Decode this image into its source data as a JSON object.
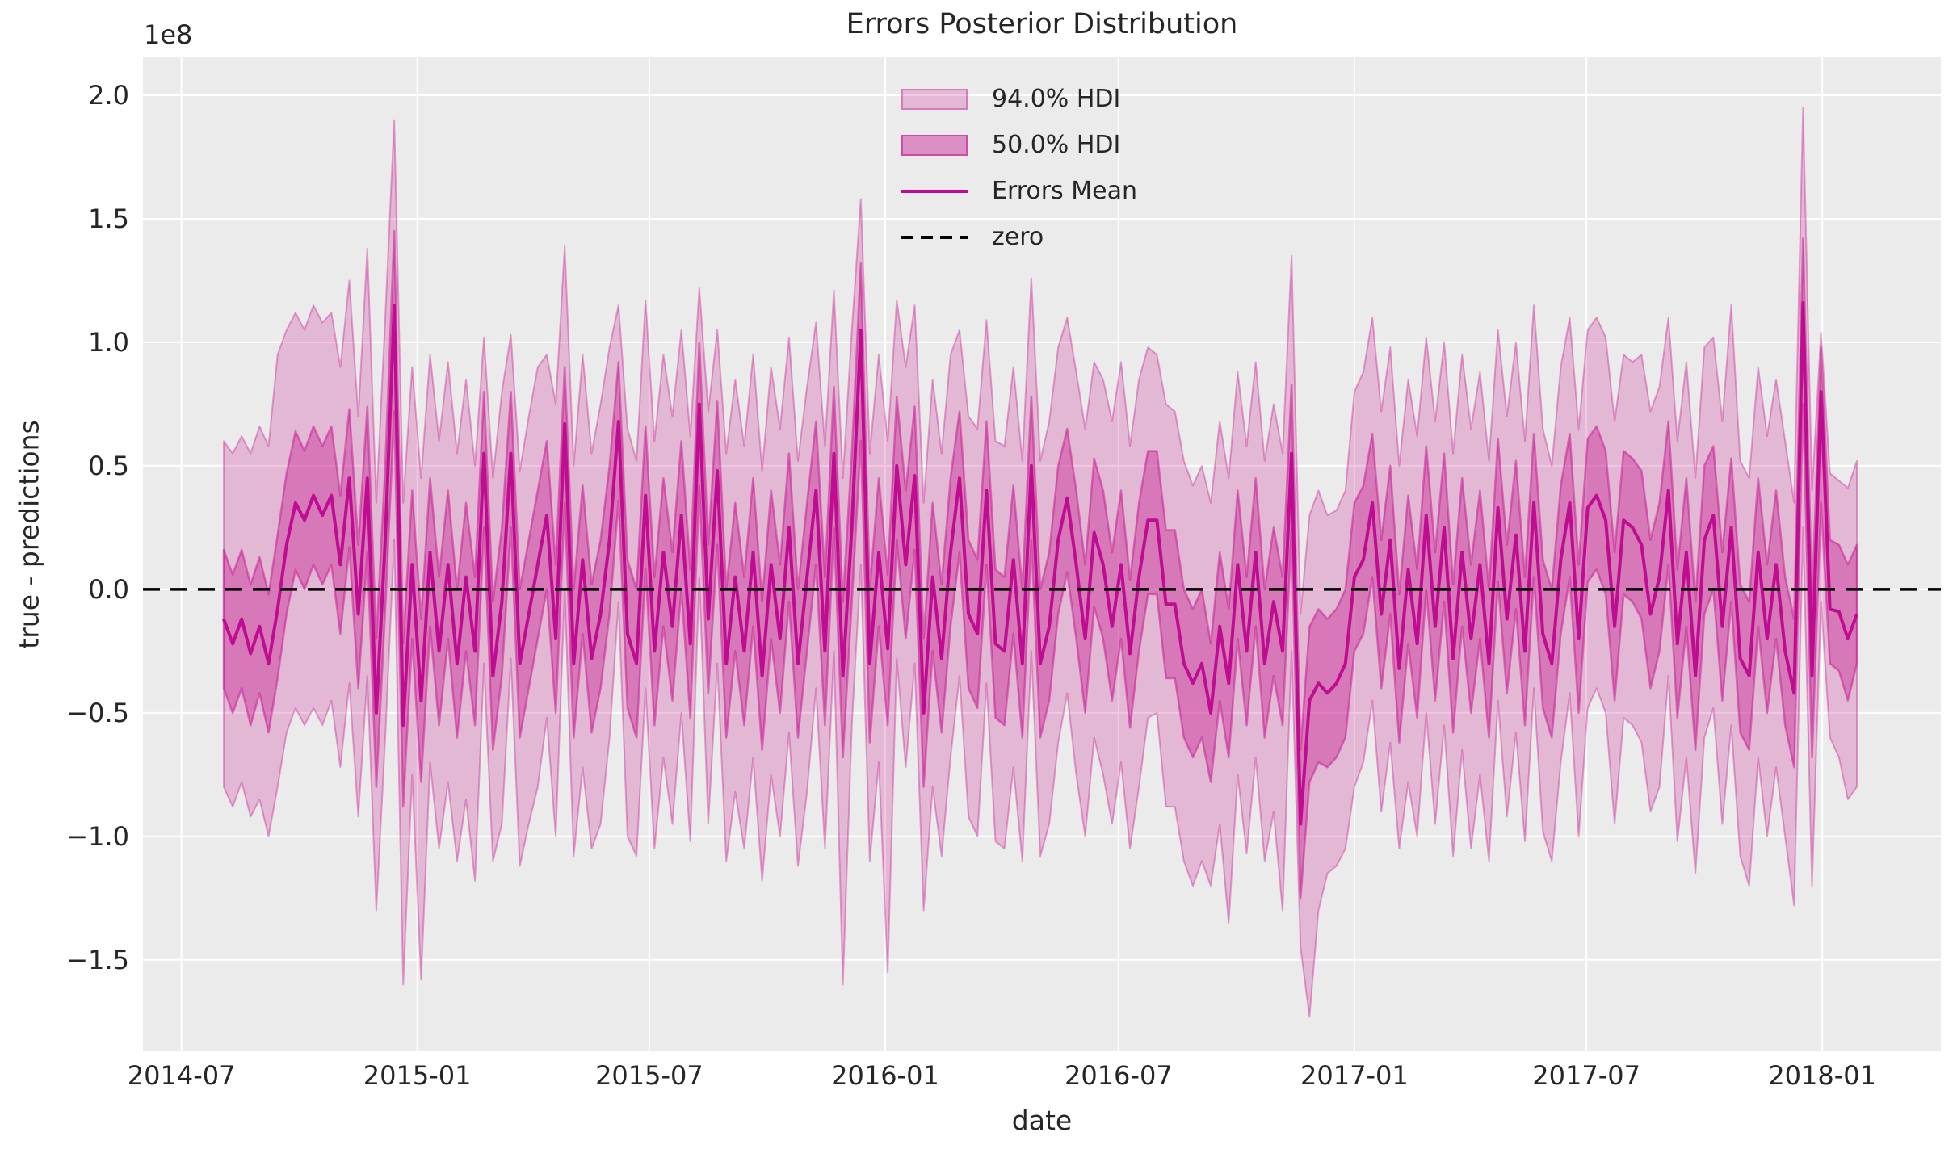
{
  "figure": {
    "title": "Errors Posterior Distribution",
    "xlabel": "date",
    "ylabel": "true - predictions",
    "offset_label": "1e8",
    "background": "#ffffff",
    "axes_background": "#ebebeb",
    "grid_color": "#ffffff",
    "text_color": "#262626"
  },
  "legend": {
    "items": [
      {
        "label": "94.0% HDI",
        "type": "patch",
        "fill": "rgba(199,32,148,0.25)",
        "border": "rgba(199,32,148,0.4)"
      },
      {
        "label": "50.0% HDI",
        "type": "patch",
        "fill": "rgba(199,32,148,0.45)",
        "border": "rgba(199,32,148,0.6)"
      },
      {
        "label": "Errors Mean",
        "type": "line",
        "color": "#be0d90"
      },
      {
        "label": "zero",
        "type": "dashed-line",
        "color": "#000000"
      }
    ]
  },
  "chart_data": {
    "type": "line",
    "title": "Errors Posterior Distribution",
    "xlabel": "date",
    "ylabel": "true - predictions",
    "value_units": "1e8",
    "grid": true,
    "legend_position": "upper center",
    "x_start_date": "2014-08-03",
    "x_step_days": 7,
    "n_points": 183,
    "x_data_start_day": 33,
    "xlim_days": [
      -30,
      1372.5
    ],
    "x_tick_days": [
      0,
      184,
      365,
      549,
      731,
      915,
      1096,
      1280
    ],
    "x_tick_labels": [
      "2014-07",
      "2015-01",
      "2015-07",
      "2016-01",
      "2016-07",
      "2017-01",
      "2017-07",
      "2018-01"
    ],
    "ylim": [
      -1.87,
      2.157
    ],
    "y_ticks": [
      2.0,
      1.5,
      1.0,
      0.5,
      0.0,
      -0.5,
      -1.0,
      -1.5
    ],
    "y_tick_labels": [
      "2.0",
      "1.5",
      "1.0",
      "0.5",
      "0.0",
      "−0.5",
      "−1.0",
      "−1.5"
    ],
    "zero_line": 0,
    "colors": {
      "band94_fill": "rgba(199,32,148,0.25)",
      "band94_edge": "rgba(199,32,148,0.4)",
      "band50_fill": "rgba(199,32,148,0.42)",
      "band50_edge": "rgba(199,32,148,0.55)",
      "mean_line": "#be0d90",
      "zero_line": "#000000"
    },
    "series": [
      {
        "name": "Errors Mean",
        "values": [
          -0.12,
          -0.22,
          -0.12,
          -0.26,
          -0.15,
          -0.3,
          -0.08,
          0.18,
          0.35,
          0.28,
          0.38,
          0.3,
          0.38,
          0.1,
          0.45,
          -0.1,
          0.45,
          -0.5,
          0.2,
          1.15,
          -0.55,
          0.1,
          -0.45,
          0.15,
          -0.25,
          0.1,
          -0.3,
          0.05,
          -0.25,
          0.55,
          -0.35,
          -0.05,
          0.55,
          -0.3,
          -0.1,
          0.1,
          0.3,
          -0.2,
          0.67,
          -0.3,
          0.12,
          -0.28,
          -0.1,
          0.2,
          0.68,
          -0.18,
          -0.3,
          0.38,
          -0.25,
          0.15,
          -0.15,
          0.3,
          -0.22,
          0.75,
          -0.12,
          0.48,
          -0.3,
          0.05,
          -0.25,
          0.15,
          -0.35,
          0.1,
          -0.2,
          0.25,
          -0.3,
          0.05,
          0.4,
          -0.25,
          0.55,
          -0.35,
          0.25,
          1.05,
          -0.3,
          0.15,
          -0.24,
          0.5,
          0.1,
          0.46,
          -0.5,
          0.05,
          -0.28,
          0.15,
          0.45,
          -0.1,
          -0.18,
          0.4,
          -0.22,
          -0.25,
          0.12,
          -0.3,
          0.5,
          -0.3,
          -0.15,
          0.2,
          0.37,
          0.1,
          -0.2,
          0.23,
          0.1,
          -0.15,
          0.1,
          -0.26,
          0.05,
          0.28,
          0.28,
          -0.06,
          -0.06,
          -0.3,
          -0.38,
          -0.3,
          -0.5,
          -0.15,
          -0.38,
          0.1,
          -0.25,
          0.15,
          -0.3,
          -0.05,
          -0.25,
          0.55,
          -0.95,
          -0.45,
          -0.38,
          -0.42,
          -0.38,
          -0.3,
          0.05,
          0.12,
          0.35,
          -0.1,
          0.2,
          -0.32,
          0.08,
          -0.22,
          0.3,
          -0.15,
          0.25,
          -0.28,
          0.15,
          -0.2,
          0.1,
          -0.3,
          0.33,
          -0.12,
          0.22,
          -0.25,
          0.35,
          -0.18,
          -0.3,
          0.12,
          0.35,
          -0.2,
          0.33,
          0.38,
          0.28,
          -0.15,
          0.28,
          0.25,
          0.18,
          -0.1,
          0.05,
          0.4,
          -0.22,
          0.15,
          -0.35,
          0.2,
          0.3,
          -0.15,
          0.25,
          -0.28,
          -0.35,
          0.15,
          -0.2,
          0.1,
          -0.25,
          -0.42,
          1.16,
          -0.35,
          0.8,
          -0.08,
          -0.09,
          -0.2,
          -0.1
        ]
      },
      {
        "name": "50% HDI lower",
        "values": [
          -0.4,
          -0.5,
          -0.4,
          -0.55,
          -0.42,
          -0.58,
          -0.36,
          -0.1,
          0.08,
          0.0,
          0.1,
          0.02,
          0.1,
          -0.18,
          0.17,
          -0.4,
          0.15,
          -0.8,
          -0.08,
          0.72,
          -0.88,
          -0.2,
          -0.78,
          -0.15,
          -0.55,
          -0.2,
          -0.6,
          -0.25,
          -0.55,
          0.25,
          -0.65,
          -0.35,
          0.25,
          -0.6,
          -0.4,
          -0.2,
          0.0,
          -0.5,
          0.35,
          -0.6,
          -0.18,
          -0.58,
          -0.4,
          -0.1,
          0.36,
          -0.48,
          -0.6,
          0.08,
          -0.55,
          -0.15,
          -0.45,
          0.0,
          -0.52,
          0.42,
          -0.42,
          0.18,
          -0.6,
          -0.25,
          -0.55,
          -0.15,
          -0.65,
          -0.2,
          -0.5,
          -0.05,
          -0.6,
          -0.25,
          0.1,
          -0.55,
          0.25,
          -0.68,
          -0.05,
          0.6,
          -0.62,
          -0.15,
          -0.55,
          0.2,
          -0.2,
          0.16,
          -0.8,
          -0.25,
          -0.58,
          -0.15,
          0.15,
          -0.4,
          -0.48,
          0.1,
          -0.52,
          -0.55,
          -0.18,
          -0.6,
          0.2,
          -0.6,
          -0.45,
          -0.1,
          0.07,
          -0.2,
          -0.5,
          -0.07,
          -0.2,
          -0.45,
          -0.2,
          -0.56,
          -0.25,
          -0.02,
          -0.02,
          -0.36,
          -0.36,
          -0.6,
          -0.68,
          -0.6,
          -0.78,
          -0.45,
          -0.68,
          -0.2,
          -0.55,
          -0.15,
          -0.6,
          -0.35,
          -0.55,
          0.25,
          -1.25,
          -0.78,
          -0.7,
          -0.72,
          -0.68,
          -0.6,
          -0.25,
          -0.18,
          0.05,
          -0.4,
          -0.1,
          -0.62,
          -0.22,
          -0.52,
          0.0,
          -0.45,
          -0.05,
          -0.58,
          -0.15,
          -0.5,
          -0.2,
          -0.6,
          0.03,
          -0.42,
          -0.08,
          -0.55,
          0.05,
          -0.48,
          -0.6,
          -0.18,
          0.05,
          -0.5,
          0.03,
          0.08,
          -0.02,
          -0.45,
          -0.02,
          -0.05,
          -0.12,
          -0.4,
          -0.25,
          0.1,
          -0.52,
          -0.15,
          -0.65,
          -0.1,
          0.0,
          -0.45,
          -0.05,
          -0.58,
          -0.65,
          -0.15,
          -0.5,
          -0.2,
          -0.55,
          -0.72,
          0.75,
          -0.68,
          0.35,
          -0.3,
          -0.33,
          -0.45,
          -0.3
        ]
      },
      {
        "name": "50% HDI upper",
        "values": [
          0.16,
          0.06,
          0.16,
          0.02,
          0.13,
          -0.02,
          0.22,
          0.47,
          0.64,
          0.56,
          0.66,
          0.58,
          0.66,
          0.38,
          0.73,
          0.18,
          0.74,
          -0.2,
          0.5,
          1.45,
          -0.22,
          0.4,
          -0.12,
          0.45,
          0.05,
          0.4,
          0.0,
          0.35,
          0.05,
          0.8,
          -0.05,
          0.25,
          0.8,
          0.0,
          0.2,
          0.4,
          0.6,
          0.1,
          0.9,
          0.0,
          0.42,
          0.02,
          0.2,
          0.5,
          0.92,
          0.12,
          0.0,
          0.66,
          0.05,
          0.45,
          0.15,
          0.6,
          0.08,
          1.0,
          0.18,
          0.76,
          0.0,
          0.35,
          0.05,
          0.45,
          -0.05,
          0.4,
          0.1,
          0.55,
          0.0,
          0.35,
          0.68,
          0.05,
          0.82,
          -0.05,
          0.55,
          1.32,
          0.0,
          0.45,
          0.06,
          0.78,
          0.4,
          0.74,
          -0.2,
          0.35,
          0.02,
          0.45,
          0.72,
          0.2,
          0.12,
          0.68,
          0.08,
          0.05,
          0.42,
          0.0,
          0.78,
          0.0,
          0.15,
          0.5,
          0.65,
          0.4,
          0.1,
          0.53,
          0.4,
          0.15,
          0.4,
          0.04,
          0.35,
          0.56,
          0.56,
          0.24,
          0.24,
          0.0,
          -0.08,
          0.0,
          -0.22,
          0.15,
          -0.08,
          0.4,
          0.05,
          0.45,
          0.0,
          0.25,
          0.05,
          0.83,
          -0.65,
          -0.15,
          -0.08,
          -0.12,
          -0.08,
          0.0,
          0.35,
          0.42,
          0.63,
          0.2,
          0.5,
          -0.02,
          0.38,
          0.08,
          0.58,
          0.15,
          0.55,
          0.02,
          0.45,
          0.1,
          0.4,
          0.0,
          0.61,
          0.18,
          0.52,
          0.05,
          0.63,
          0.12,
          0.0,
          0.42,
          0.63,
          0.1,
          0.61,
          0.66,
          0.56,
          0.15,
          0.56,
          0.53,
          0.48,
          0.2,
          0.35,
          0.68,
          0.08,
          0.45,
          -0.05,
          0.5,
          0.58,
          0.15,
          0.53,
          0.02,
          -0.05,
          0.45,
          0.1,
          0.4,
          0.05,
          -0.12,
          1.42,
          -0.05,
          0.98,
          0.2,
          0.18,
          0.1,
          0.18
        ]
      },
      {
        "name": "94% HDI lower",
        "values": [
          -0.8,
          -0.88,
          -0.78,
          -0.92,
          -0.85,
          -1.0,
          -0.8,
          -0.58,
          -0.48,
          -0.55,
          -0.48,
          -0.55,
          -0.45,
          -0.72,
          -0.38,
          -0.92,
          -0.35,
          -1.3,
          -0.6,
          0.2,
          -1.6,
          -0.75,
          -1.58,
          -0.7,
          -1.05,
          -0.78,
          -1.1,
          -0.85,
          -1.18,
          -0.3,
          -1.1,
          -0.95,
          -0.28,
          -1.12,
          -0.95,
          -0.8,
          -0.52,
          -1.0,
          0.0,
          -1.08,
          -0.72,
          -1.05,
          -0.95,
          -0.6,
          -0.05,
          -1.0,
          -1.08,
          -0.4,
          -1.05,
          -0.68,
          -0.95,
          -0.5,
          -1.02,
          0.05,
          -0.95,
          -0.3,
          -1.1,
          -0.82,
          -1.05,
          -0.68,
          -1.18,
          -0.75,
          -1.0,
          -0.58,
          -1.12,
          -0.82,
          -0.4,
          -1.05,
          -0.25,
          -1.6,
          -0.55,
          0.1,
          -1.1,
          -0.7,
          -1.55,
          -0.28,
          -0.72,
          -0.3,
          -1.3,
          -0.8,
          -1.08,
          -0.68,
          -0.35,
          -0.92,
          -1.0,
          -0.38,
          -1.02,
          -1.05,
          -0.72,
          -1.1,
          -0.25,
          -1.08,
          -0.95,
          -0.62,
          -0.42,
          -0.75,
          -1.0,
          -0.6,
          -0.75,
          -0.95,
          -0.7,
          -1.05,
          -0.8,
          -0.52,
          -0.5,
          -0.88,
          -0.88,
          -1.1,
          -1.2,
          -1.1,
          -1.2,
          -0.95,
          -1.35,
          -0.75,
          -1.07,
          -0.68,
          -1.1,
          -0.9,
          -1.3,
          -0.25,
          -1.45,
          -1.73,
          -1.3,
          -1.15,
          -1.12,
          -1.05,
          -0.8,
          -0.7,
          -0.45,
          -0.9,
          -0.62,
          -1.05,
          -0.78,
          -1.0,
          -0.5,
          -0.95,
          -0.55,
          -1.08,
          -0.65,
          -1.05,
          -0.75,
          -1.1,
          -0.45,
          -0.92,
          -0.58,
          -1.02,
          -0.4,
          -0.98,
          -1.1,
          -0.7,
          -0.42,
          -1.0,
          -0.48,
          -0.4,
          -0.5,
          -0.95,
          -0.52,
          -0.55,
          -0.62,
          -0.9,
          -0.8,
          -0.35,
          -1.02,
          -0.68,
          -1.15,
          -0.6,
          -0.48,
          -0.95,
          -0.55,
          -1.08,
          -1.2,
          -0.68,
          -1.0,
          -0.72,
          -1.0,
          -1.28,
          0.25,
          -1.2,
          -0.05,
          -0.6,
          -0.68,
          -0.85,
          -0.8
        ]
      },
      {
        "name": "94% HDI upper",
        "values": [
          0.6,
          0.55,
          0.62,
          0.55,
          0.66,
          0.58,
          0.95,
          1.05,
          1.12,
          1.05,
          1.15,
          1.08,
          1.12,
          0.9,
          1.25,
          0.7,
          1.38,
          0.35,
          1.1,
          1.9,
          0.35,
          0.9,
          0.45,
          0.95,
          0.6,
          0.92,
          0.55,
          0.85,
          0.5,
          1.02,
          0.45,
          0.8,
          1.03,
          0.48,
          0.7,
          0.9,
          0.95,
          0.75,
          1.39,
          0.5,
          0.95,
          0.55,
          0.75,
          0.98,
          1.15,
          0.65,
          0.52,
          1.17,
          0.6,
          0.95,
          0.7,
          1.05,
          0.62,
          1.22,
          0.72,
          1.05,
          0.55,
          0.85,
          0.58,
          0.95,
          0.48,
          0.9,
          0.65,
          1.02,
          0.52,
          0.82,
          1.08,
          0.58,
          1.21,
          0.45,
          1.05,
          1.58,
          0.55,
          0.95,
          0.6,
          1.17,
          0.9,
          1.15,
          0.35,
          0.85,
          0.55,
          0.95,
          1.05,
          0.7,
          0.65,
          1.09,
          0.6,
          0.58,
          0.9,
          0.52,
          1.26,
          0.52,
          0.68,
          0.98,
          1.1,
          0.88,
          0.65,
          0.92,
          0.85,
          0.68,
          0.92,
          0.58,
          0.85,
          0.98,
          0.95,
          0.75,
          0.72,
          0.52,
          0.42,
          0.5,
          0.35,
          0.68,
          0.45,
          0.88,
          0.58,
          0.92,
          0.52,
          0.75,
          0.55,
          1.35,
          -0.1,
          0.3,
          0.4,
          0.3,
          0.32,
          0.4,
          0.8,
          0.88,
          1.1,
          0.72,
          0.98,
          0.5,
          0.85,
          0.62,
          1.02,
          0.68,
          1.0,
          0.55,
          0.95,
          0.65,
          0.88,
          0.52,
          1.05,
          0.7,
          1.0,
          0.6,
          1.15,
          0.65,
          0.5,
          0.9,
          1.1,
          0.65,
          1.05,
          1.1,
          1.02,
          0.68,
          0.95,
          0.92,
          0.95,
          0.72,
          0.82,
          1.1,
          0.6,
          0.92,
          0.45,
          0.98,
          1.02,
          0.68,
          1.15,
          0.52,
          0.45,
          0.9,
          0.62,
          0.85,
          0.6,
          0.35,
          1.95,
          0.4,
          1.04,
          0.47,
          0.44,
          0.41,
          0.52
        ]
      }
    ]
  }
}
